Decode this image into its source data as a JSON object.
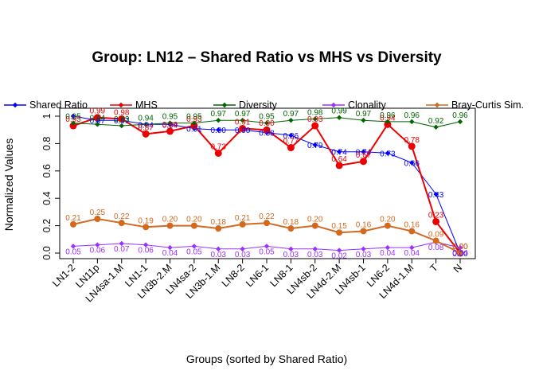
{
  "chart_data": {
    "type": "line",
    "title": "Group: LN12 – Shared Ratio vs MHS vs Diversity",
    "xlabel": "Groups (sorted by Shared Ratio)",
    "ylabel": "Normalized Values",
    "ylim": [
      0,
      1
    ],
    "yticks": [
      "0.0",
      "0.2",
      "0.4",
      "0.6",
      "0.8",
      "1"
    ],
    "categories": [
      "LN1-2",
      "LN11p",
      "LN4sa-1.M",
      "LN1-1",
      "LN3b-2.M",
      "LN4sa-2",
      "LN3b-1.M",
      "LN8-2",
      "LN6-1",
      "LN8-1",
      "LN4sb-2",
      "LN4d-2.M",
      "LN4sb-1",
      "LN6-2",
      "LN4d-1.M",
      "T",
      "N"
    ],
    "legend_position": "top",
    "grid": false,
    "series": [
      {
        "name": "Shared Ratio",
        "color": "#0000ff",
        "values": [
          1.0,
          0.97,
          0.97,
          0.94,
          0.94,
          0.91,
          0.9,
          0.9,
          0.88,
          0.86,
          0.79,
          0.74,
          0.74,
          0.73,
          0.66,
          0.43,
          0.0
        ],
        "labels": [
          "1",
          "0.97",
          "0.97",
          "0.94",
          "0.94",
          "0.91",
          "0.90",
          "0.90",
          "0.88",
          "0.86",
          "0.79",
          "0.74",
          "0.74",
          "0.73",
          "0.66",
          "0.43",
          "0.00"
        ]
      },
      {
        "name": "MHS",
        "color": "#ee0000",
        "values": [
          0.93,
          0.99,
          0.98,
          0.87,
          0.89,
          0.93,
          0.73,
          0.91,
          0.9,
          0.77,
          0.93,
          0.64,
          0.67,
          0.94,
          0.78,
          0.23,
          0.0
        ],
        "labels": [
          "0.93",
          "0.99",
          "0.98",
          "0.87",
          "0.89",
          "0.93",
          "0.73",
          "0.91",
          "0.90",
          "0.77",
          "0.93",
          "0.64",
          "0.67",
          "0.94",
          "0.78",
          "0.23",
          "0.00"
        ]
      },
      {
        "name": "Diversity",
        "color": "#006400",
        "values": [
          0.95,
          0.94,
          0.93,
          0.94,
          0.95,
          0.95,
          0.97,
          0.97,
          0.95,
          0.97,
          0.98,
          0.99,
          0.97,
          0.96,
          0.96,
          0.92,
          0.96
        ],
        "labels": [
          "0.95",
          "0.94",
          "0.93",
          "0.94",
          "0.95",
          "0.95",
          "0.97",
          "0.97",
          "0.95",
          "0.97",
          "0.98",
          "0.99",
          "0.97",
          "0.96",
          "0.96",
          "0.92",
          "0.96"
        ]
      },
      {
        "name": "Clonality",
        "color": "#9b30ff",
        "values": [
          0.05,
          0.06,
          0.07,
          0.06,
          0.04,
          0.05,
          0.03,
          0.03,
          0.05,
          0.03,
          0.03,
          0.02,
          0.03,
          0.04,
          0.04,
          0.08,
          0.04
        ],
        "labels": [
          "0.05",
          "0.06",
          "0.07",
          "0.06",
          "0.04",
          "0.05",
          "0.03",
          "0.03",
          "0.05",
          "0.03",
          "0.03",
          "0.02",
          "0.03",
          "0.04",
          "0.04",
          "0.08",
          "0.04"
        ]
      },
      {
        "name": "Bray-Curtis Sim.",
        "color": "#d2691e",
        "values": [
          0.21,
          0.25,
          0.22,
          0.19,
          0.2,
          0.2,
          0.18,
          0.21,
          0.22,
          0.18,
          0.2,
          0.15,
          0.16,
          0.2,
          0.16,
          0.09,
          0.0
        ],
        "labels": [
          "0.21",
          "0.25",
          "0.22",
          "0.19",
          "0.20",
          "0.20",
          "0.18",
          "0.21",
          "0.22",
          "0.18",
          "0.20",
          "0.15",
          "0.16",
          "0.20",
          "0.16",
          "0.09",
          "0.00"
        ]
      }
    ]
  }
}
